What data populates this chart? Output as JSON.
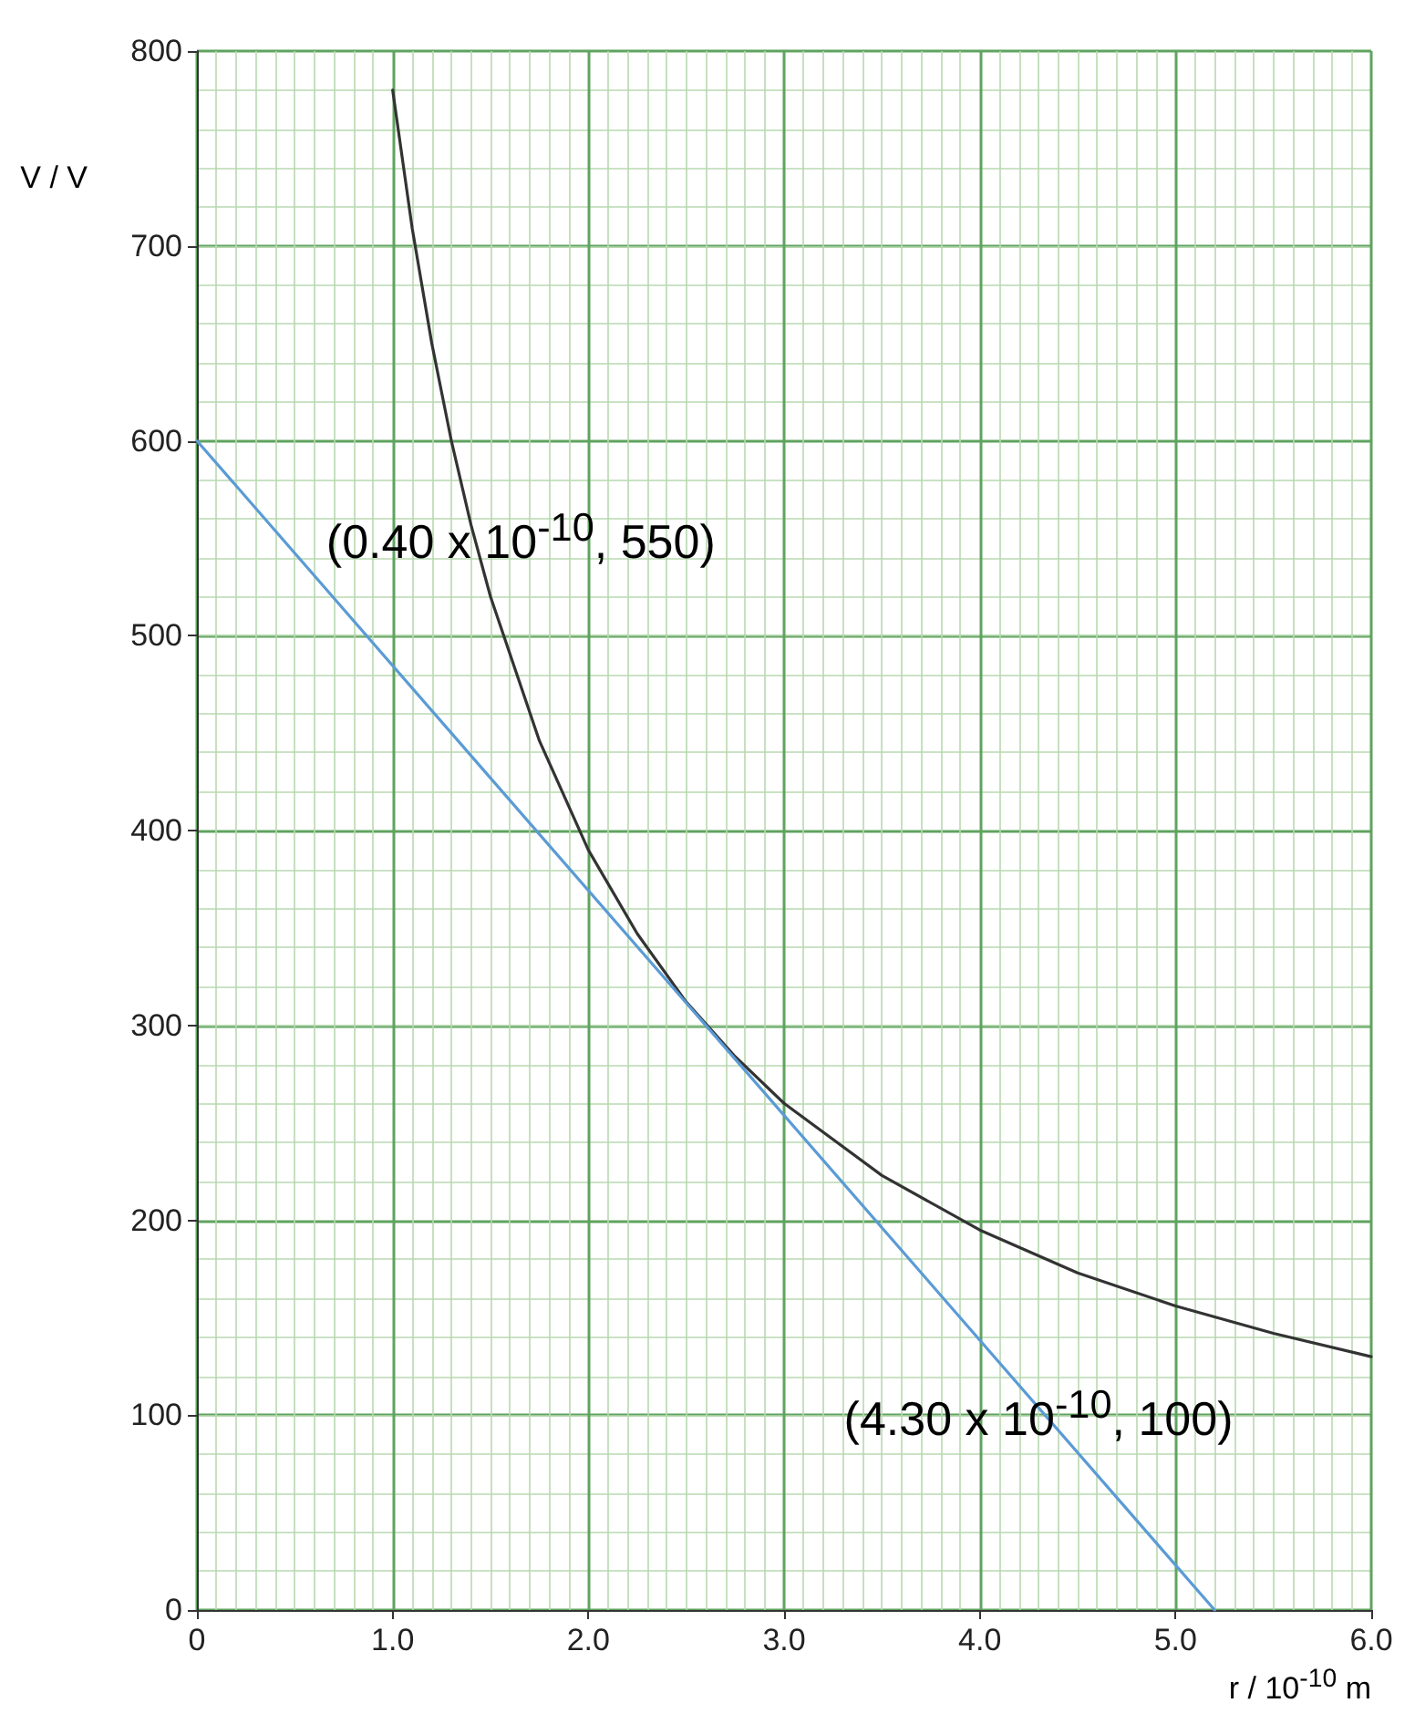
{
  "chart_data": {
    "type": "line",
    "xlabel": "r / 10$^{-10}$ m",
    "ylabel": "V / V",
    "xlim": [
      0,
      6
    ],
    "ylim": [
      0,
      800
    ],
    "xticks": [
      0,
      {
        "value": 1,
        "label": "1.0"
      },
      {
        "value": 2,
        "label": "2.0"
      },
      {
        "value": 3,
        "label": "3.0"
      },
      {
        "value": 4,
        "label": "4.0"
      },
      {
        "value": 5,
        "label": "5.0"
      },
      {
        "value": 6,
        "label": "6.0"
      }
    ],
    "yticks": [
      0,
      100,
      200,
      300,
      400,
      500,
      600,
      700,
      800
    ],
    "grid": true,
    "marker": "none",
    "line_style": "solid",
    "series": [
      {
        "color": "#333333",
        "x": [
          1.0,
          1.1,
          1.2,
          1.3,
          1.4,
          1.5,
          1.75,
          2.0,
          2.25,
          2.5,
          2.75,
          3.0,
          3.5,
          4.0,
          4.5,
          5.0,
          5.5,
          6.0
        ],
        "values": [
          780,
          709,
          650,
          600,
          557,
          520,
          446,
          390,
          347,
          312,
          284,
          260,
          223,
          195,
          173,
          156,
          142,
          130
        ]
      },
      {
        "color": "#5b9bd5",
        "x": [
          0,
          5.2
        ],
        "values": [
          600,
          0
        ]
      }
    ],
    "annotations": [
      {
        "text": "(0.40 x 10$^{-10}$, 550)",
        "x": 0.4,
        "y": 550
      },
      {
        "text": "(4.30 x 10$^{-10}$, 100)",
        "x": 4.3,
        "y": 100
      }
    ]
  }
}
